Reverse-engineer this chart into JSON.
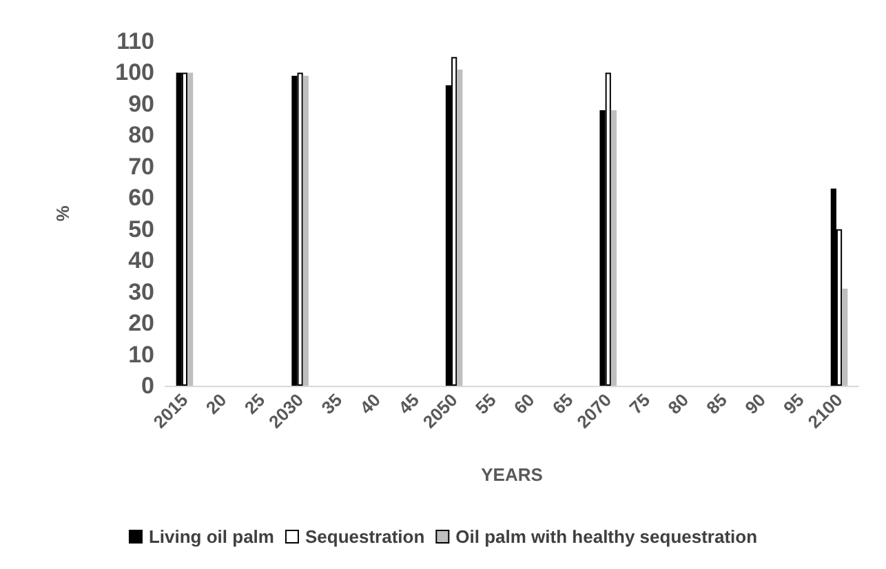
{
  "chart_data": {
    "type": "bar",
    "xlabel": "YEARS",
    "ylabel": "%",
    "categories": [
      "2015",
      "20",
      "25",
      "2030",
      "35",
      "40",
      "45",
      "2050",
      "55",
      "60",
      "65",
      "2070",
      "75",
      "80",
      "85",
      "90",
      "95",
      "2100"
    ],
    "series": [
      {
        "name": "Living oil palm",
        "color": "#000000",
        "values": [
          100,
          null,
          null,
          99,
          null,
          null,
          null,
          96,
          null,
          null,
          null,
          88,
          null,
          null,
          null,
          null,
          null,
          63
        ]
      },
      {
        "name": "Sequestration",
        "color": "#ffffff",
        "values": [
          100,
          null,
          null,
          100,
          null,
          null,
          null,
          105,
          null,
          null,
          null,
          100,
          null,
          null,
          null,
          null,
          null,
          50
        ]
      },
      {
        "name": "Oil palm with healthy sequestration",
        "color": "#bfbfbf",
        "values": [
          100,
          null,
          null,
          99,
          null,
          null,
          null,
          101,
          null,
          null,
          null,
          88,
          null,
          null,
          null,
          null,
          null,
          31
        ]
      }
    ],
    "ylim": [
      0,
      110
    ],
    "yticks": [
      0,
      10,
      20,
      30,
      40,
      50,
      60,
      70,
      80,
      90,
      100,
      110
    ],
    "grid": false,
    "legend": "bottom"
  }
}
